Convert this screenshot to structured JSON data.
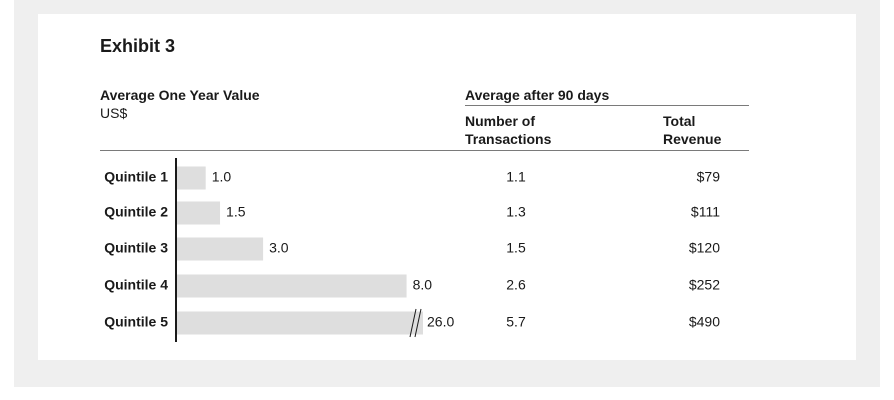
{
  "chart_data": {
    "type": "table",
    "title": "Exhibit 3",
    "bar_header": "Average One Year Value",
    "bar_unit": "US$",
    "group_header": "Average after 90 days",
    "columns": [
      "Number of Transactions",
      "Total Revenue"
    ],
    "categories": [
      "Quintile 1",
      "Quintile 2",
      "Quintile 3",
      "Quintile 4",
      "Quintile 5"
    ],
    "values": [
      1.0,
      1.5,
      3.0,
      8.0,
      26.0
    ],
    "value_labels": [
      "1.0",
      "1.5",
      "3.0",
      "8.0",
      "26.0"
    ],
    "axis_break_on": "Quintile 5",
    "transactions": [
      "1.1",
      "1.3",
      "1.5",
      "2.6",
      "5.7"
    ],
    "revenue": [
      "$79",
      "$111",
      "$120",
      "$252",
      "$490"
    ],
    "bar_color": "#dedede"
  }
}
